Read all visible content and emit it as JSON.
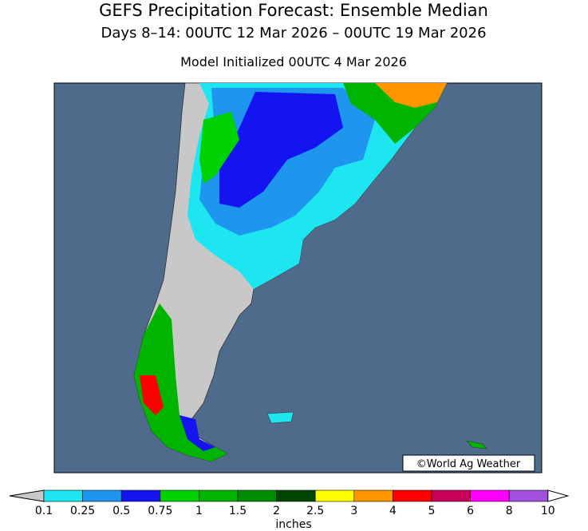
{
  "header": {
    "title": "GEFS Precipitation Forecast: Ensemble Median",
    "subtitle": "Days 8–14: 00UTC 12 Mar 2026 – 00UTC 19 Mar 2026",
    "initialized": "Model Initialized 00UTC 4 Mar 2026"
  },
  "map": {
    "credit": "©World Ag Weather"
  },
  "legend": {
    "ticks": [
      0.1,
      0.25,
      0.5,
      0.75,
      1,
      1.5,
      2,
      2.5,
      3,
      4,
      5,
      6,
      8,
      10
    ],
    "colors": [
      "#1ee6f0",
      "#1e96f0",
      "#1414f0",
      "#00d200",
      "#00b400",
      "#008c00",
      "#004600",
      "#ffff00",
      "#ff9600",
      "#ff0000",
      "#c8005a",
      "#ff00ff",
      "#a050dc"
    ],
    "unit": "inches"
  }
}
